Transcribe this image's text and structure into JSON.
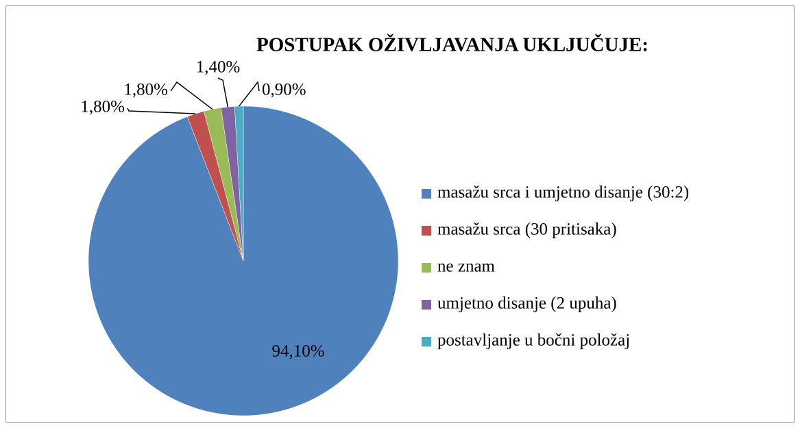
{
  "chart_data": {
    "type": "pie",
    "title": "POSTUPAK OŽIVLJAVANJA UKLJUČUJE:",
    "categories": [
      "masažu srca i umjetno disanje (30:2)",
      "masažu srca (30 pritisaka)",
      "ne znam",
      "umjetno disanje (2 upuha)",
      "postavljanje u bočni položaj"
    ],
    "values": [
      94.1,
      1.8,
      1.8,
      1.4,
      0.9
    ],
    "value_labels": [
      "94,10%",
      "1,80%",
      "1,80%",
      "1,40%",
      "0,90%"
    ],
    "colors": [
      "#4f81bd",
      "#c0504d",
      "#9bbb59",
      "#8064a2",
      "#4bacc6"
    ],
    "legend": "right"
  }
}
